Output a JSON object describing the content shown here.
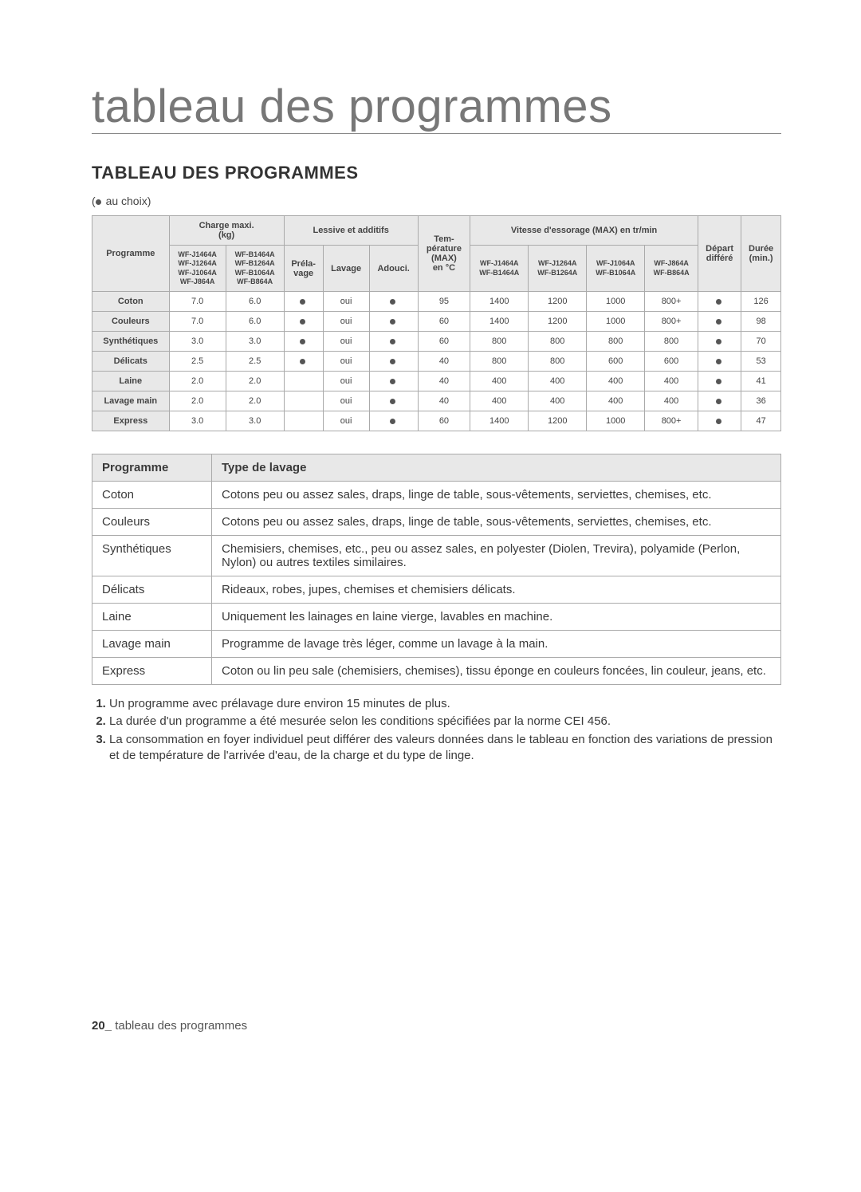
{
  "title_main": "tableau des programmes",
  "section_heading": "TABLEAU DES PROGRAMMES",
  "legend_text": "au choix)",
  "footer_page": "20_",
  "footer_label": "tableau des programmes",
  "headers": {
    "programme": "Programme",
    "charge": "Charge maxi.\n(kg)",
    "lessive": "Lessive et additifs",
    "prelavage": "Préla-\nvage",
    "lavage": "Lavage",
    "adouci": "Adouci.",
    "temp": "Tem-\npérature\n(MAX)\nen °C",
    "vitesse": "Vitesse d'essorage (MAX) en tr/min",
    "depart": "Départ\ndifféré",
    "duree": "Durée\n(min.)",
    "models_a": "WF-J1464A\nWF-J1264A\nWF-J1064A\nWF-J864A",
    "models_b": "WF-B1464A\nWF-B1264A\nWF-B1064A\nWF-B864A",
    "spin_m1": "WF-J1464A\nWF-B1464A",
    "spin_m2": "WF-J1264A\nWF-B1264A",
    "spin_m3": "WF-J1064A\nWF-B1064A",
    "spin_m4": "WF-J864A\nWF-B864A"
  },
  "rows": [
    {
      "name": "Coton",
      "cA": "7.0",
      "cB": "6.0",
      "pre": "•",
      "lav": "oui",
      "ad": "•",
      "temp": "95",
      "s1": "1400",
      "s2": "1200",
      "s3": "1000",
      "s4": "800+",
      "dep": "•",
      "dur": "126"
    },
    {
      "name": "Couleurs",
      "cA": "7.0",
      "cB": "6.0",
      "pre": "•",
      "lav": "oui",
      "ad": "•",
      "temp": "60",
      "s1": "1400",
      "s2": "1200",
      "s3": "1000",
      "s4": "800+",
      "dep": "•",
      "dur": "98"
    },
    {
      "name": "Synthétiques",
      "cA": "3.0",
      "cB": "3.0",
      "pre": "•",
      "lav": "oui",
      "ad": "•",
      "temp": "60",
      "s1": "800",
      "s2": "800",
      "s3": "800",
      "s4": "800",
      "dep": "•",
      "dur": "70"
    },
    {
      "name": "Délicats",
      "cA": "2.5",
      "cB": "2.5",
      "pre": "•",
      "lav": "oui",
      "ad": "•",
      "temp": "40",
      "s1": "800",
      "s2": "800",
      "s3": "600",
      "s4": "600",
      "dep": "•",
      "dur": "53"
    },
    {
      "name": "Laine",
      "cA": "2.0",
      "cB": "2.0",
      "pre": "",
      "lav": "oui",
      "ad": "•",
      "temp": "40",
      "s1": "400",
      "s2": "400",
      "s3": "400",
      "s4": "400",
      "dep": "•",
      "dur": "41"
    },
    {
      "name": "Lavage main",
      "cA": "2.0",
      "cB": "2.0",
      "pre": "",
      "lav": "oui",
      "ad": "•",
      "temp": "40",
      "s1": "400",
      "s2": "400",
      "s3": "400",
      "s4": "400",
      "dep": "•",
      "dur": "36"
    },
    {
      "name": "Express",
      "cA": "3.0",
      "cB": "3.0",
      "pre": "",
      "lav": "oui",
      "ad": "•",
      "temp": "60",
      "s1": "1400",
      "s2": "1200",
      "s3": "1000",
      "s4": "800+",
      "dep": "•",
      "dur": "47"
    }
  ],
  "desc_headers": {
    "programme": "Programme",
    "type": "Type de lavage"
  },
  "desc_rows": [
    {
      "name": "Coton",
      "text": "Cotons peu ou assez sales, draps, linge de table, sous-vêtements, serviettes, chemises, etc."
    },
    {
      "name": "Couleurs",
      "text": "Cotons peu ou assez sales, draps, linge de table, sous-vêtements, serviettes, chemises, etc."
    },
    {
      "name": "Synthétiques",
      "text": "Chemisiers, chemises, etc., peu ou assez sales, en polyester (Diolen, Trevira), polyamide (Perlon, Nylon) ou autres textiles similaires."
    },
    {
      "name": "Délicats",
      "text": "Rideaux, robes, jupes, chemises et chemisiers délicats."
    },
    {
      "name": "Laine",
      "text": "Uniquement les lainages en laine vierge, lavables en machine."
    },
    {
      "name": "Lavage main",
      "text": "Programme de lavage très léger, comme un lavage à la main."
    },
    {
      "name": "Express",
      "text": "Coton ou lin peu sale (chemisiers, chemises), tissu éponge en couleurs foncées, lin couleur, jeans, etc."
    }
  ],
  "notes": [
    "Un programme avec prélavage dure environ 15 minutes de plus.",
    "La durée d'un programme a été mesurée selon les conditions spécifiées par la norme CEI 456.",
    "La consommation en foyer individuel peut différer des valeurs données dans le tableau en fonction des variations de pression et de température de l'arrivée d'eau, de la charge et du type de linge."
  ]
}
